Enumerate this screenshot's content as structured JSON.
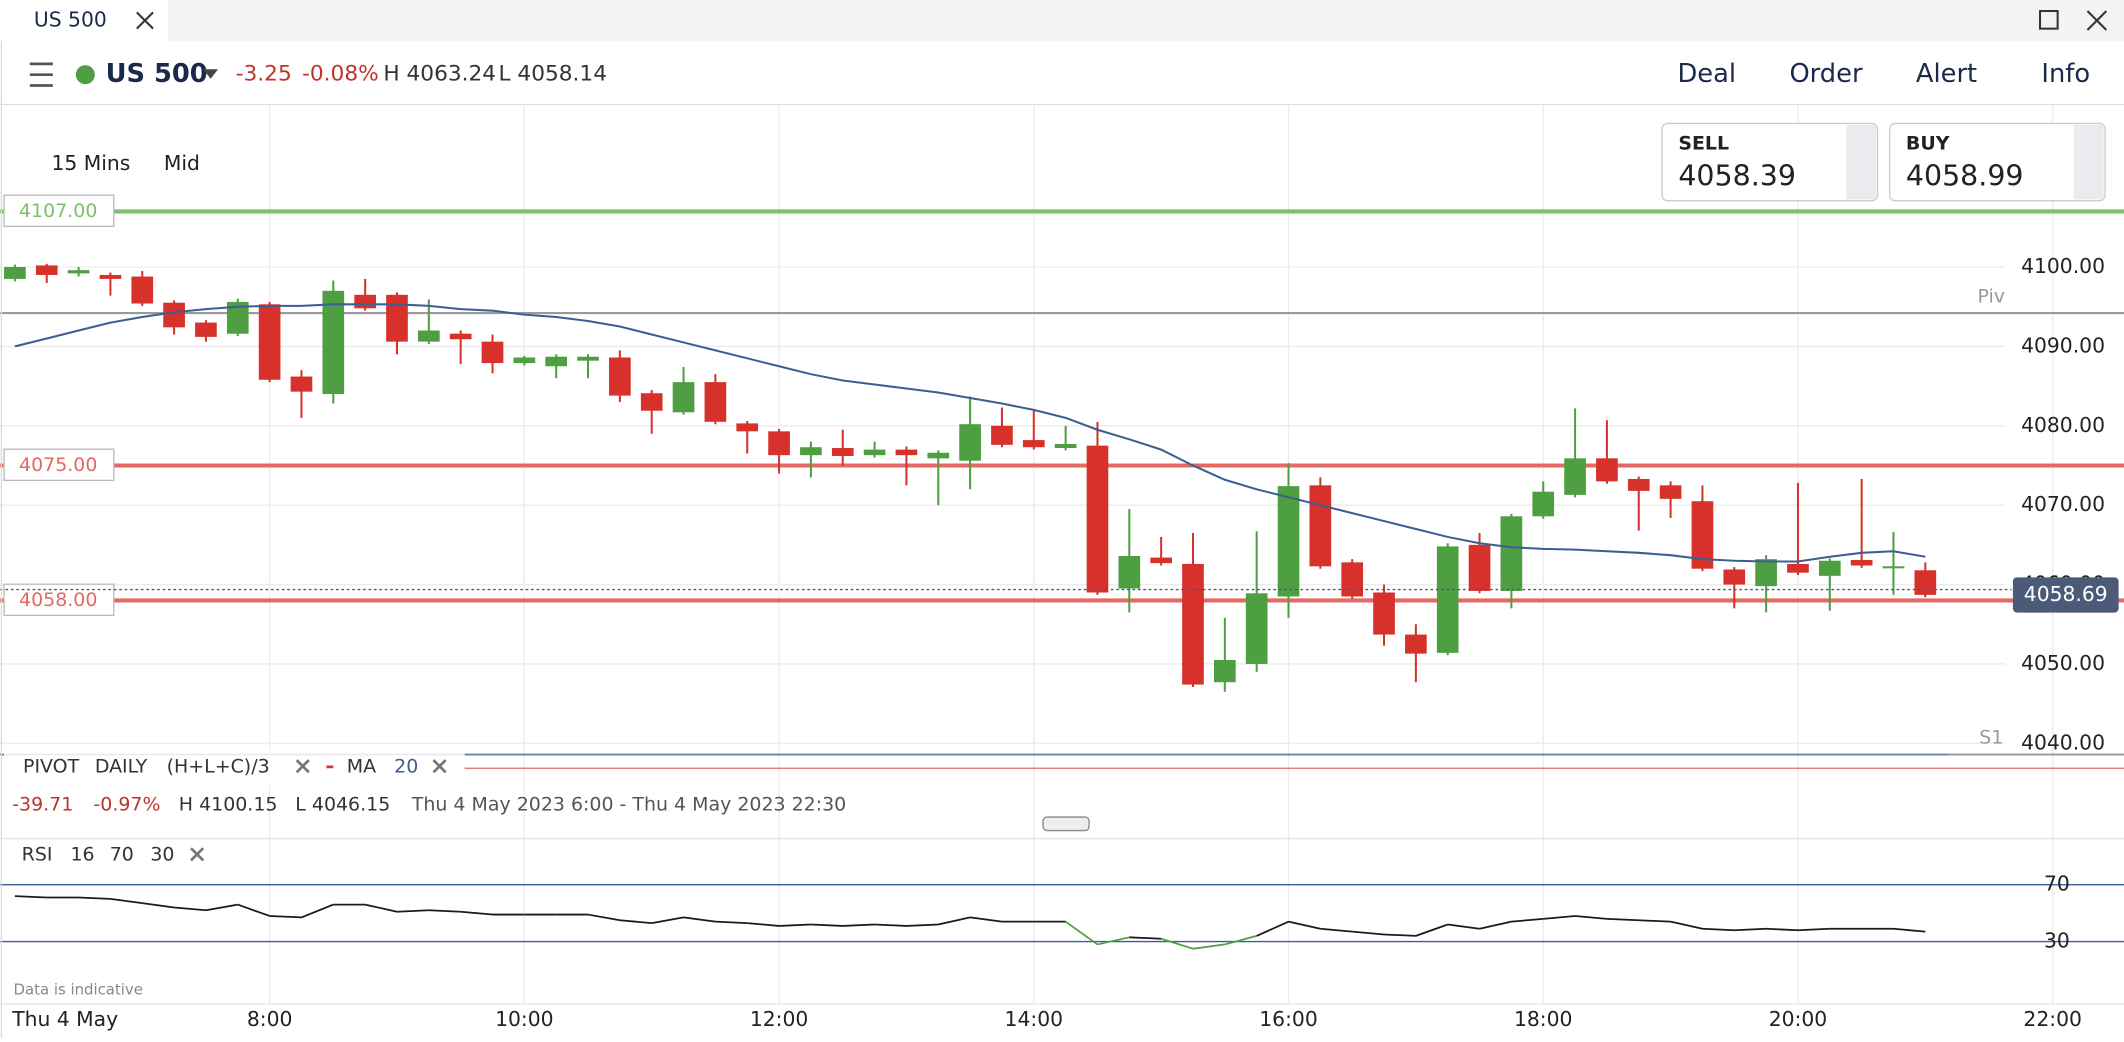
{
  "tab": {
    "title": "US 500"
  },
  "toolbar": {
    "instrument": "US 500",
    "change": "-3.25",
    "change_pct": "-0.08%",
    "high": "H 4063.24",
    "low": "L 4058.14",
    "buttons": [
      "Deal",
      "Order",
      "Alert",
      "Info"
    ]
  },
  "quote": {
    "sell_label": "SELL",
    "sell": "4058.39",
    "buy_label": "BUY",
    "buy": "4058.99"
  },
  "settings": {
    "interval": "15 Mins",
    "price": "Mid"
  },
  "chart_data": {
    "type": "candlestick",
    "x": [
      6,
      6.25,
      6.5,
      6.75,
      7,
      7.25,
      7.5,
      7.75,
      8,
      8.25,
      8.5,
      8.75,
      9,
      9.25,
      9.5,
      9.75,
      10,
      10.25,
      10.5,
      10.75,
      11,
      11.25,
      11.5,
      11.75,
      12,
      12.25,
      12.5,
      12.75,
      13,
      13.25,
      13.5,
      13.75,
      14,
      14.25,
      14.5,
      14.75,
      15,
      15.25,
      15.5,
      15.75,
      16,
      16.25,
      16.5,
      16.75,
      17,
      17.25,
      17.5,
      17.75,
      18,
      18.25,
      18.5,
      18.75,
      19,
      19.25,
      19.5,
      19.75,
      20,
      20.25,
      20.5,
      20.75,
      21
    ],
    "open": [
      4098.5,
      4100.2,
      4099.2,
      4099,
      4098.8,
      4095.5,
      4093,
      4091.6,
      4095.3,
      4086.2,
      4084,
      4096.5,
      4096.5,
      4090.6,
      4091.6,
      4090.6,
      4087.9,
      4087.5,
      4088.2,
      4088.6,
      4084.1,
      4081.7,
      4085.5,
      4080.3,
      4079.3,
      4076.3,
      4077.2,
      4076.3,
      4077,
      4075.9,
      4075.6,
      4080,
      4078.2,
      4077.2,
      4077.5,
      4059.5,
      4063.4,
      4062.6,
      4047.7,
      4050,
      4058.5,
      4072.5,
      4062.8,
      4059,
      4053.7,
      4051.4,
      4065,
      4059.2,
      4068.6,
      4071.3,
      4075.9,
      4073.3,
      4072.5,
      4070.5,
      4061.9,
      4059.8,
      4062.6,
      4061.1,
      4063.1,
      4062.1,
      4061.8
    ],
    "high": [
      4100.3,
      4100.4,
      4100,
      4099.3,
      4099.5,
      4095.8,
      4093.3,
      4096,
      4095.6,
      4087,
      4098.3,
      4098.5,
      4096.8,
      4095.9,
      4092,
      4091.5,
      4088.8,
      4089,
      4089,
      4089.5,
      4084.5,
      4087.4,
      4086.5,
      4080.6,
      4079.6,
      4078,
      4079.5,
      4078,
      4077.4,
      4076.9,
      4083.7,
      4082.3,
      4082,
      4080,
      4080.5,
      4069.5,
      4066,
      4066.5,
      4055.8,
      4066.7,
      4075.3,
      4073.5,
      4063.2,
      4060,
      4055,
      4065.2,
      4066.5,
      4068.9,
      4073,
      4082.2,
      4080.7,
      4073.6,
      4073,
      4072.5,
      4062.2,
      4063.7,
      4072.8,
      4063.3,
      4073.3,
      4066.6,
      4062.8
    ],
    "low": [
      4098.2,
      4098,
      4098.8,
      4096.4,
      4095.1,
      4091.5,
      4090.6,
      4091.3,
      4085.5,
      4081,
      4082.8,
      4094.5,
      4089,
      4090.3,
      4087.8,
      4086.6,
      4087.6,
      4086,
      4086,
      4083,
      4079,
      4081.4,
      4080.2,
      4076.5,
      4074,
      4073.5,
      4075,
      4076,
      4072.5,
      4070,
      4072,
      4077.3,
      4077,
      4076.9,
      4058.7,
      4056.5,
      4062.4,
      4047.1,
      4046.5,
      4049,
      4055.8,
      4062,
      4058.2,
      4052.3,
      4047.7,
      4051.1,
      4058.9,
      4057,
      4068.3,
      4071,
      4072.7,
      4066.8,
      4068.4,
      4061.7,
      4057,
      4056.5,
      4061.2,
      4056.7,
      4062.1,
      4058.7,
      4058.4
    ],
    "close": [
      4100,
      4099,
      4099.6,
      4098.5,
      4095.4,
      4092.4,
      4091.2,
      4095.6,
      4085.8,
      4084.3,
      4097,
      4094.8,
      4090.6,
      4092,
      4090.9,
      4087.9,
      4088.6,
      4088.7,
      4088.7,
      4083.8,
      4081.9,
      4085.5,
      4080.5,
      4079.3,
      4076.3,
      4077.3,
      4076.2,
      4077,
      4076.3,
      4076.6,
      4080.2,
      4077.6,
      4077.3,
      4077.7,
      4059,
      4063.6,
      4062.7,
      4047.4,
      4050.5,
      4058.9,
      4072.4,
      4062.3,
      4058.5,
      4053.7,
      4051.3,
      4064.8,
      4059.2,
      4068.6,
      4071.7,
      4075.9,
      4073,
      4071.8,
      4070.8,
      4062,
      4060,
      4063.2,
      4061.5,
      4063,
      4062.4,
      4062.3,
      4058.7
    ],
    "up_color": "#4e9e42",
    "down_color": "#d6312b",
    "xlim": [
      5.883,
      22.56
    ],
    "xticks": [
      {
        "value": 8,
        "label": "8:00"
      },
      {
        "value": 10,
        "label": "10:00"
      },
      {
        "value": 12,
        "label": "12:00"
      },
      {
        "value": 14,
        "label": "14:00"
      },
      {
        "value": 16,
        "label": "16:00"
      },
      {
        "value": 18,
        "label": "18:00"
      },
      {
        "value": 20,
        "label": "20:00"
      },
      {
        "value": 22,
        "label": "22:00"
      }
    ],
    "x_start_label": "Thu 4 May",
    "ylim": [
      4038.57,
      4120.3
    ],
    "yticks": [
      {
        "value": 4040,
        "label": "4040.00"
      },
      {
        "value": 4050,
        "label": "4050.00"
      },
      {
        "value": 4060,
        "label": "4060.00"
      },
      {
        "value": 4070,
        "label": "4070.00"
      },
      {
        "value": 4080,
        "label": "4080.00"
      },
      {
        "value": 4090,
        "label": "4090.00"
      },
      {
        "value": 4100,
        "label": "4100.00"
      }
    ],
    "grid": true,
    "ma": {
      "name": "MA",
      "period": "20",
      "color": "#3b5f93",
      "values": [
        4090,
        4091,
        4092,
        4093,
        4093.7,
        4094.3,
        4094.7,
        4095,
        4095.1,
        4095.1,
        4095.3,
        4095.3,
        4095.3,
        4095.1,
        4094.7,
        4094.5,
        4094,
        4093.7,
        4093.2,
        4092.5,
        4091.5,
        4090.5,
        4089.5,
        4088.5,
        4087.5,
        4086.5,
        4085.7,
        4085.2,
        4084.7,
        4084.2,
        4083.5,
        4082.8,
        4082,
        4081,
        4079.5,
        4078.3,
        4077,
        4075,
        4073.2,
        4072,
        4071,
        4070,
        4069,
        4068,
        4067,
        4066,
        4065.2,
        4064.7,
        4064.5,
        4064.4,
        4064.2,
        4064,
        4063.7,
        4063.2,
        4063,
        4062.9,
        4062.9,
        4063.5,
        4064,
        4064.2,
        4063.5
      ]
    },
    "levels": [
      {
        "value": 4107,
        "label": "4107.00",
        "color": "#7cbf6c"
      },
      {
        "value": 4075,
        "label": "4075.00",
        "color": "#e26a63"
      },
      {
        "value": 4058,
        "label": "4058.00",
        "color": "#e26a63"
      }
    ],
    "pivots": [
      {
        "value": 4094.2,
        "label": "Piv",
        "color": "#9a9a9a"
      },
      {
        "value": 4038.6,
        "label": "S1",
        "color": "#9a9a9a"
      }
    ],
    "current_price": {
      "value": 4058.69,
      "label": "4058.69",
      "color": "#4a5a78"
    }
  },
  "indicator_legend": {
    "pivot": "PIVOT",
    "period": "DAILY",
    "formula": "(H+L+C)/3",
    "ma": "MA",
    "ma_period": "20"
  },
  "stats": {
    "change": "-39.71",
    "change_pct": "-0.97%",
    "high": "H 4100.15",
    "low": "L 4046.15",
    "range": "Thu 4 May 2023 6:00 - Thu 4 May 2023 22:30"
  },
  "rsi": {
    "name": "RSI",
    "params": [
      "16",
      "70",
      "30"
    ],
    "color": "#1a1a1a",
    "below_color": "#4e9e42",
    "values": [
      62,
      61,
      61,
      60,
      57,
      54,
      52,
      56,
      48,
      47,
      56,
      56,
      51,
      52,
      51,
      49,
      49,
      49,
      49,
      45,
      43,
      47,
      44,
      43,
      41,
      42,
      41,
      42,
      41,
      42,
      47,
      44,
      44,
      44,
      28,
      33,
      32,
      25,
      28,
      34,
      44,
      39,
      37,
      35,
      34,
      42,
      39,
      44,
      46,
      48,
      46,
      45,
      44,
      39,
      38,
      39,
      38,
      39,
      39,
      39,
      37
    ],
    "ylim": [
      -12.9,
      101.4
    ],
    "yticks": [
      70,
      30
    ],
    "line_color": "#3b5f93"
  },
  "footer": {
    "note": "Data is indicative"
  }
}
